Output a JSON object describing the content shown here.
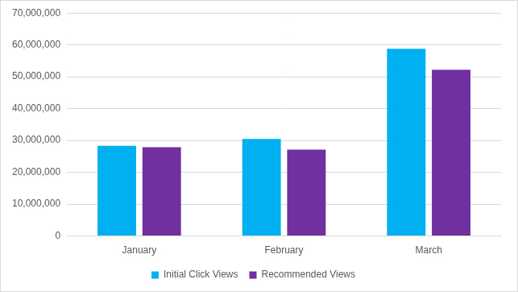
{
  "chart_data": {
    "type": "bar",
    "categories": [
      "January",
      "February",
      "March"
    ],
    "series": [
      {
        "name": "Initial Click Views",
        "color": "#00b0f0",
        "values": [
          28300000,
          30500000,
          58800000
        ]
      },
      {
        "name": "Recommended Views",
        "color": "#7030a0",
        "values": [
          27900000,
          27100000,
          52200000
        ]
      }
    ],
    "ylim": [
      0,
      70000000
    ],
    "yticks": [
      0,
      {
        "value": 10000000,
        "label": "10,000,000"
      },
      {
        "value": 20000000,
        "label": "20,000,000"
      },
      {
        "value": 30000000,
        "label": "30,000,000"
      },
      {
        "value": 40000000,
        "label": "40,000,000"
      },
      {
        "value": 50000000,
        "label": "50,000,000"
      },
      {
        "value": 60000000,
        "label": "60,000,000"
      },
      {
        "value": 70000000,
        "label": "70,000,000"
      }
    ],
    "grid": true,
    "legend": "bottom"
  }
}
